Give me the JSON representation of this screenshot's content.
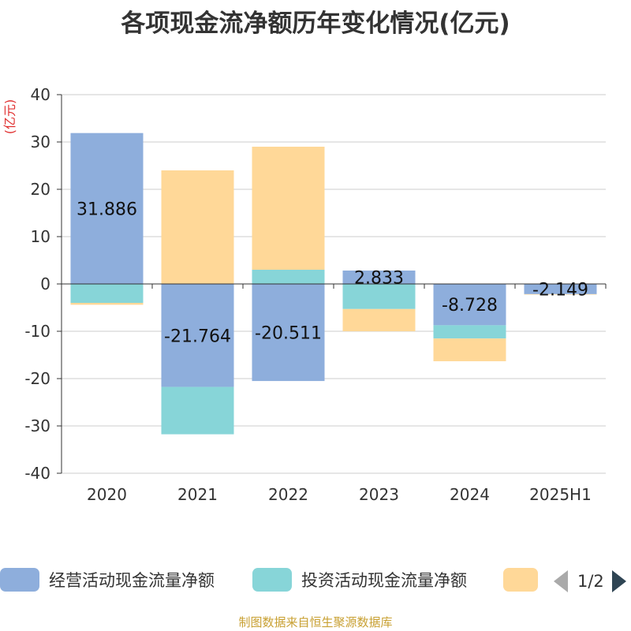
{
  "title": "各项现金流净额历年变化情况(亿元)",
  "source": "制图数据来自恒生聚源数据库",
  "colors": {
    "operating": "#8eaedc",
    "investing": "#87d5d8",
    "financing": "#ffd898",
    "axis": "#333333",
    "grid": "#cccccc",
    "unit": "#e03030"
  },
  "legend": {
    "items": [
      {
        "label": "经营活动现金流量净额",
        "color_key": "operating"
      },
      {
        "label": "投资活动现金流量净额",
        "color_key": "investing"
      },
      {
        "label": "",
        "color_key": "financing"
      }
    ],
    "page_text": "1/2"
  },
  "chart_data": {
    "type": "bar",
    "stacked": true,
    "unit_label": "(亿元)",
    "categories": [
      "2020",
      "2021",
      "2022",
      "2023",
      "2024",
      "2025H1"
    ],
    "ylim": [
      -40,
      40
    ],
    "yticks": [
      40,
      30,
      20,
      10,
      0,
      -10,
      -20,
      -30,
      -40
    ],
    "grid": true,
    "legend_position": "bottom",
    "series": [
      {
        "name": "经营活动现金流量净额",
        "color_key": "operating",
        "values": [
          31.886,
          -21.764,
          -20.511,
          2.833,
          -8.728,
          -2.149
        ],
        "show_labels": true
      },
      {
        "name": "投资活动现金流量净额",
        "color_key": "investing",
        "values": [
          -4.0,
          -10.0,
          3.0,
          -5.3,
          -2.8,
          0.0
        ],
        "show_labels": false
      },
      {
        "color_key": "financing",
        "values": [
          -0.4,
          24.0,
          26.0,
          -4.7,
          -4.8,
          -0.1
        ],
        "show_labels": false
      }
    ]
  }
}
